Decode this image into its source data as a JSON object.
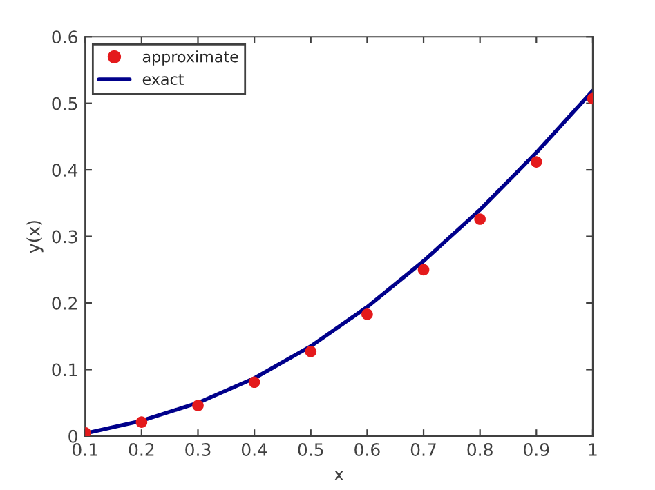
{
  "chart_data": {
    "type": "line",
    "xlabel": "x",
    "ylabel": "y(x)",
    "x": [
      0.1,
      0.2,
      0.3,
      0.4,
      0.5,
      0.6,
      0.7,
      0.8,
      0.9,
      1.0
    ],
    "series": [
      {
        "name": "approximate",
        "type": "scatter",
        "color": "#e41a1c",
        "marker": "circle",
        "values": [
          0.005,
          0.021,
          0.046,
          0.081,
          0.127,
          0.183,
          0.25,
          0.326,
          0.412,
          0.507
        ]
      },
      {
        "name": "exact",
        "color": "#00008b",
        "line_style": "solid",
        "values": [
          0.004,
          0.023,
          0.05,
          0.087,
          0.135,
          0.194,
          0.263,
          0.34,
          0.426,
          0.519
        ]
      }
    ],
    "xlim": [
      0.1,
      1
    ],
    "xticks": [
      0.1,
      0.2,
      0.3,
      0.4,
      0.5,
      0.6,
      0.7,
      0.8,
      0.9,
      1
    ],
    "ylim": [
      0,
      0.6
    ],
    "yticks": [
      0,
      0.1,
      0.2,
      0.3,
      0.4,
      0.5,
      0.6
    ],
    "grid": false,
    "legend": "top left"
  }
}
